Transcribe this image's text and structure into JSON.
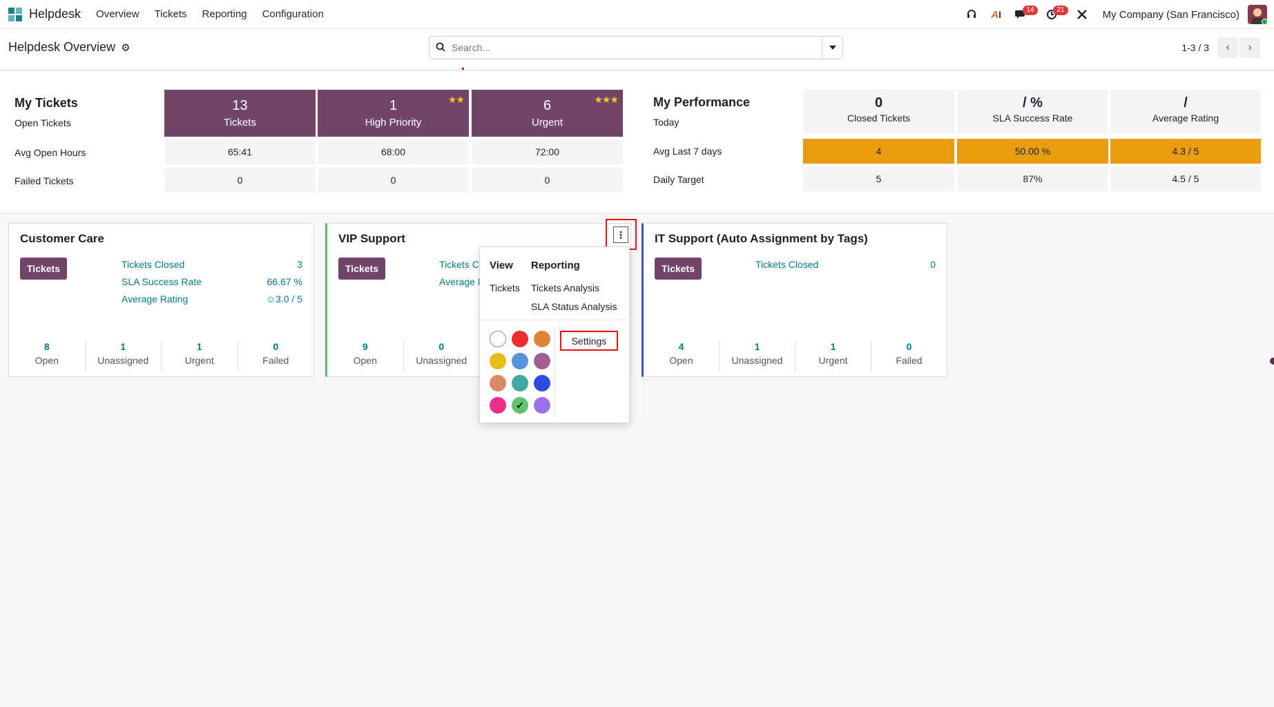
{
  "app": {
    "name": "Helpdesk"
  },
  "menu": [
    "Overview",
    "Tickets",
    "Reporting",
    "Configuration"
  ],
  "systray": {
    "icons": [
      "headset-icon",
      "ai-icon",
      "chat-icon",
      "clock-icon",
      "tools-icon"
    ],
    "messages_badge": "14",
    "activities_badge": "21",
    "company": "My Company (San Francisco)"
  },
  "controlpanel": {
    "breadcrumb": "Helpdesk Overview",
    "search_placeholder": "Search...",
    "pager": "1-3 / 3"
  },
  "my_tickets": {
    "title": "My Tickets",
    "row_labels": [
      "Open Tickets",
      "Avg Open Hours",
      "Failed Tickets"
    ],
    "tiles": [
      {
        "num": "13",
        "label": "Tickets",
        "stars": ""
      },
      {
        "num": "1",
        "label": "High Priority",
        "stars": "★★"
      },
      {
        "num": "6",
        "label": "Urgent",
        "stars": "★★★"
      }
    ],
    "avg_open_hours": [
      "65:41",
      "68:00",
      "72:00"
    ],
    "failed": [
      "0",
      "0",
      "0"
    ]
  },
  "my_performance": {
    "title": "My Performance",
    "row_labels": [
      "Today",
      "Avg Last 7 days",
      "Daily Target"
    ],
    "heads": [
      {
        "num": "0",
        "label": "Closed Tickets"
      },
      {
        "num": "/ %",
        "label": "SLA Success Rate"
      },
      {
        "num": "/",
        "label": "Average Rating"
      }
    ],
    "avg7": [
      "4",
      "50.00 %",
      "4.3 / 5"
    ],
    "target": [
      "5",
      "87%",
      "4.5 / 5"
    ],
    "highlight_color": "#e89c0e"
  },
  "teams": [
    {
      "name": "Customer Care",
      "button": "Tickets",
      "kv": [
        {
          "label": "Tickets Closed",
          "value": "3"
        },
        {
          "label": "SLA Success Rate",
          "value": "66.67 %"
        },
        {
          "label": "Average Rating",
          "value": "☺3.0 / 5"
        }
      ],
      "footer": [
        {
          "num": "8",
          "label": "Open"
        },
        {
          "num": "1",
          "label": "Unassigned"
        },
        {
          "num": "1",
          "label": "Urgent"
        },
        {
          "num": "0",
          "label": "Failed"
        }
      ]
    },
    {
      "name": "VIP Support",
      "button": "Tickets",
      "kv": [
        {
          "label": "Tickets Cl",
          "value": ""
        },
        {
          "label": "Average R",
          "value": ""
        }
      ],
      "footer": [
        {
          "num": "9",
          "label": "Open"
        },
        {
          "num": "0",
          "label": "Unassigned"
        }
      ]
    },
    {
      "name": "IT Support (Auto Assignment by Tags)",
      "button": "Tickets",
      "kv": [
        {
          "label": "Tickets Closed",
          "value": "0"
        }
      ],
      "footer": [
        {
          "num": "4",
          "label": "Open"
        },
        {
          "num": "1",
          "label": "Unassigned"
        },
        {
          "num": "1",
          "label": "Urgent"
        },
        {
          "num": "0",
          "label": "Failed"
        }
      ]
    }
  ],
  "dropdown": {
    "view_header": "View",
    "reporting_header": "Reporting",
    "view_items": [
      "Tickets"
    ],
    "reporting_items": [
      "Tickets Analysis",
      "SLA Status Analysis"
    ],
    "settings": "Settings",
    "colors": [
      "#ffffff",
      "#ee2d2d",
      "#dc8534",
      "#e8bb1d",
      "#5794dd",
      "#9f628f",
      "#db8865",
      "#41a9a2",
      "#304be0",
      "#ee2f8a",
      "#61c36e",
      "#9872e6"
    ],
    "selected_color": "#61c36e"
  }
}
